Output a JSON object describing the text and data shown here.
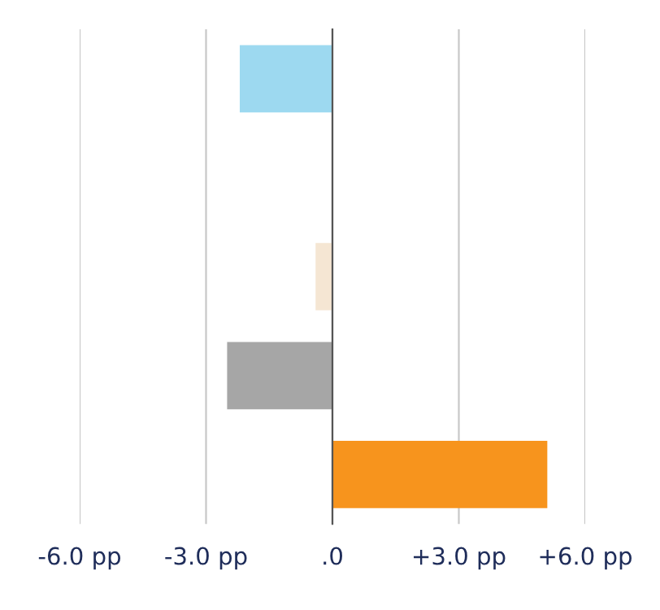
{
  "chart_data": {
    "type": "bar",
    "orientation": "horizontal",
    "categories": [
      null,
      null,
      null,
      null,
      null
    ],
    "values": [
      -2.2,
      null,
      -0.4,
      -2.5,
      5.1
    ],
    "colors": [
      "#9dd9f0",
      "#9dd9f0",
      "#f5e6d3",
      "#a6a6a6",
      "#f7941d"
    ],
    "xlim": [
      -6,
      6
    ],
    "xticks": [
      {
        "value": -6,
        "label": "-6.0 pp"
      },
      {
        "value": -3,
        "label": "-3.0 pp"
      },
      {
        "value": 0,
        "label": ".0"
      },
      {
        "value": 3,
        "label": "+3.0 pp"
      },
      {
        "value": 6,
        "label": "+6.0 pp"
      }
    ],
    "grid": "x"
  }
}
